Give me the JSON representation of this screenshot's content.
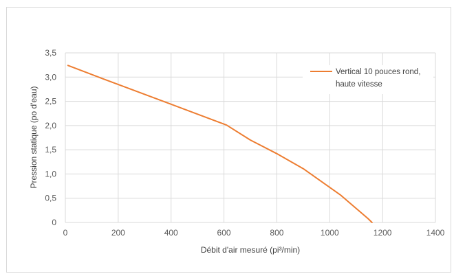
{
  "chart_data": {
    "type": "line",
    "title": "",
    "xlabel": "Débit d'air mesuré (pi³/min)",
    "ylabel": "Pression statique (po d'eau)",
    "xlim": [
      0,
      1400
    ],
    "ylim": [
      0,
      3.5
    ],
    "x_ticks": [
      0,
      200,
      400,
      600,
      800,
      1000,
      1200,
      1400
    ],
    "y_ticks": [
      0,
      0.5,
      1.0,
      1.5,
      2.0,
      2.5,
      3.0,
      3.5
    ],
    "x_tick_labels": [
      "0",
      "200",
      "400",
      "600",
      "800",
      "1000",
      "1200",
      "1400"
    ],
    "y_tick_labels": [
      "0",
      "0,5",
      "1,0",
      "1,5",
      "2,0",
      "2,5",
      "3,0",
      "3,5"
    ],
    "grid": true,
    "legend_position": "top-right",
    "series": [
      {
        "name_lines": [
          "Vertical 10 pouces rond,",
          "haute vitesse"
        ],
        "color": "#ed7d31",
        "x": [
          10,
          140,
          400,
          610,
          700,
          800,
          900,
          1040,
          1145,
          1160
        ],
        "y": [
          3.24,
          2.97,
          2.44,
          2.01,
          1.7,
          1.42,
          1.11,
          0.57,
          0.08,
          0.0
        ]
      }
    ]
  }
}
